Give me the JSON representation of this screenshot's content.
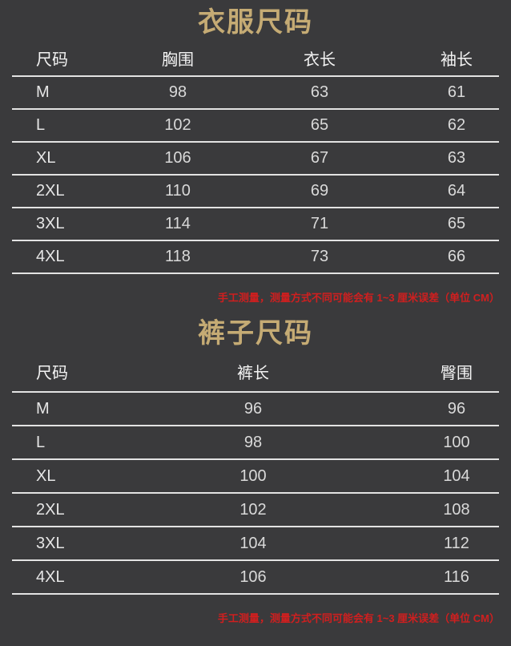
{
  "colors": {
    "background": "#3a3a3c",
    "title_gold": "#c5ab74",
    "note_red": "#d01f1f",
    "divider": "#e3e3e3"
  },
  "chart_data": [
    {
      "type": "table",
      "title": "衣服尺码",
      "columns": [
        "尺码",
        "胸围",
        "衣长",
        "袖长"
      ],
      "rows": [
        [
          "M",
          "98",
          "63",
          "61"
        ],
        [
          "L",
          "102",
          "65",
          "62"
        ],
        [
          "XL",
          "106",
          "67",
          "63"
        ],
        [
          "2XL",
          "110",
          "69",
          "64"
        ],
        [
          "3XL",
          "114",
          "71",
          "65"
        ],
        [
          "4XL",
          "118",
          "73",
          "66"
        ]
      ],
      "note": "手工测量，测量方式不同可能会有 1~3 厘米误差（单位 CM）"
    },
    {
      "type": "table",
      "title": "裤子尺码",
      "columns": [
        "尺码",
        "裤长",
        "臀围"
      ],
      "rows": [
        [
          "M",
          "96",
          "96"
        ],
        [
          "L",
          "98",
          "100"
        ],
        [
          "XL",
          "100",
          "104"
        ],
        [
          "2XL",
          "102",
          "108"
        ],
        [
          "3XL",
          "104",
          "112"
        ],
        [
          "4XL",
          "106",
          "116"
        ]
      ],
      "note": "手工测量，测量方式不同可能会有 1~3 厘米误差（单位 CM）"
    }
  ]
}
